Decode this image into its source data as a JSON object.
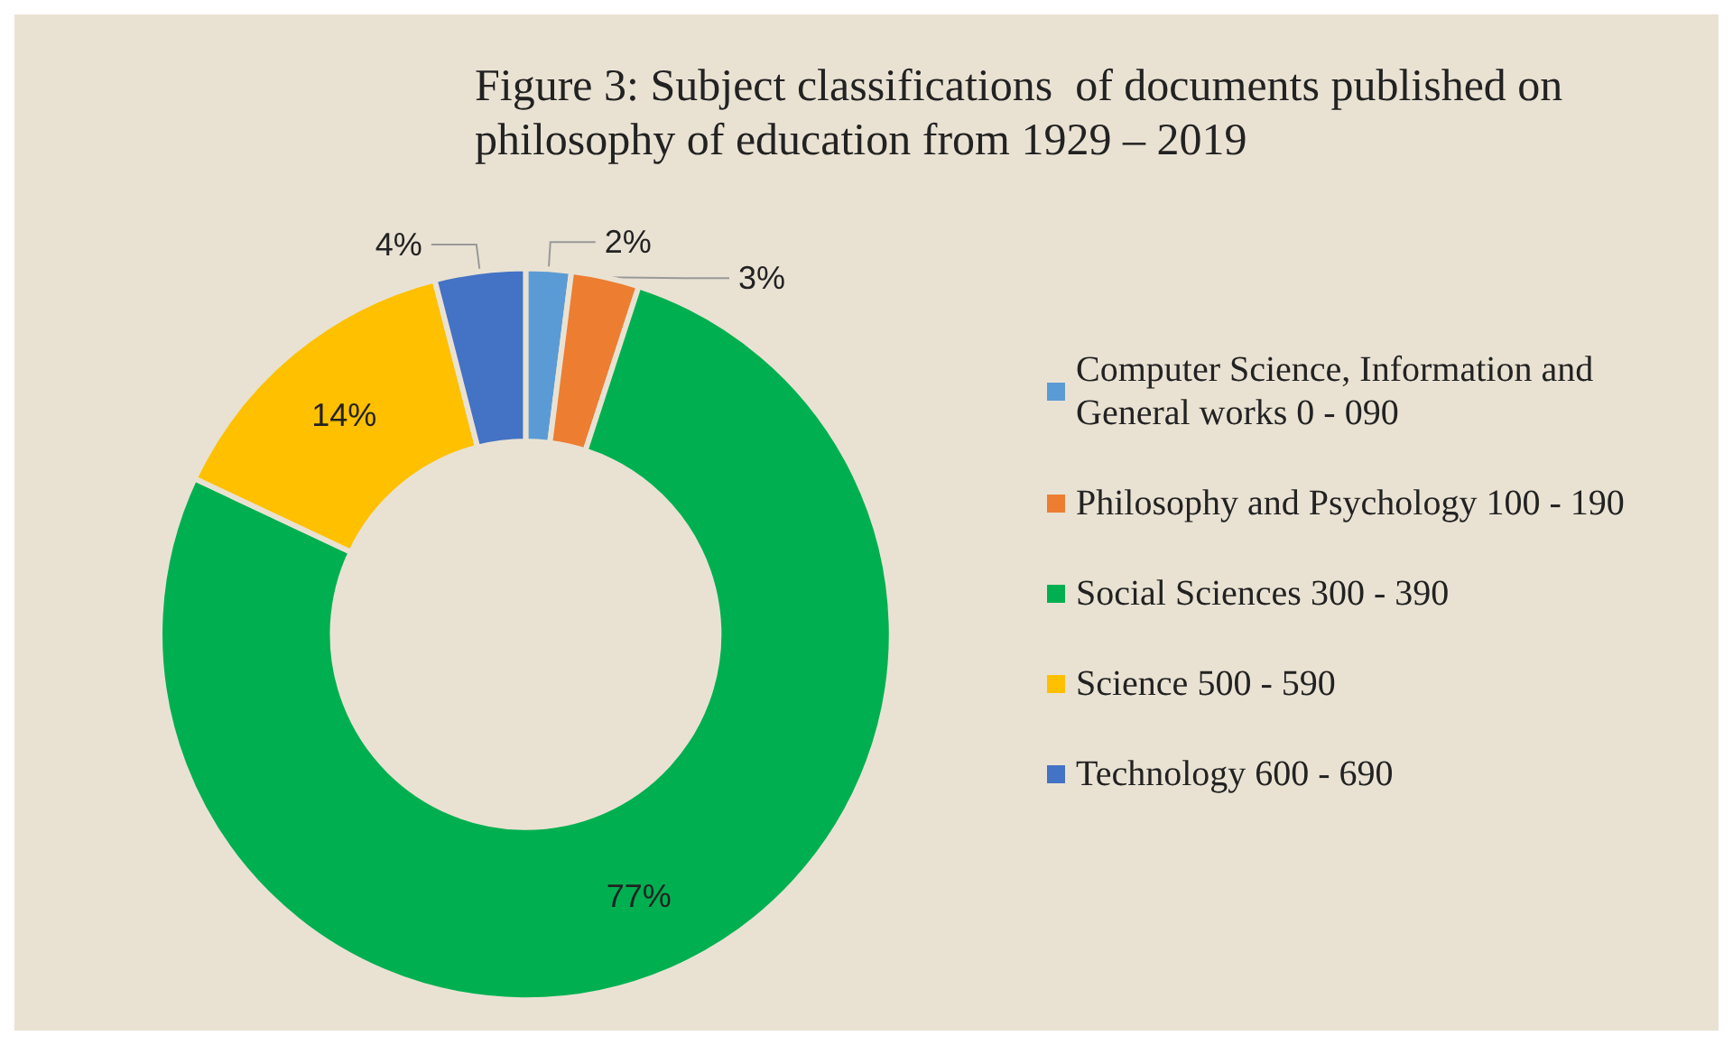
{
  "chart_data": {
    "type": "donut",
    "title": "Figure 3: Subject classifications  of documents published on philosophy of education from 1929 – 2019",
    "categories": [
      "Computer Science, Information and General works 0 - 090",
      "Philosophy and Psychology 100 - 190",
      "Social Sciences 300 - 390",
      "Science 500 - 590",
      "Technology 600 - 690"
    ],
    "values": [
      2,
      3,
      77,
      14,
      4
    ],
    "colors": [
      "#5b9bd5",
      "#ed7d31",
      "#00b050",
      "#ffc000",
      "#4472c4"
    ],
    "value_labels": [
      "2%",
      "3%",
      "77%",
      "14%",
      "4%"
    ],
    "legend": "right"
  }
}
